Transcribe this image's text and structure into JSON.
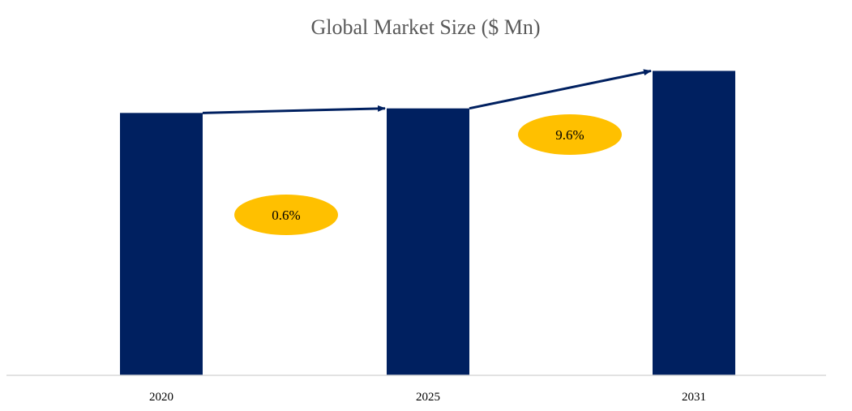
{
  "chart_data": {
    "type": "bar",
    "title": "Global Market Size ($ Mn)",
    "categories": [
      "2020",
      "2025",
      "2031"
    ],
    "values": [
      57.4,
      58.4,
      66.6
    ],
    "ylim": [
      0,
      72
    ],
    "xlabel": "",
    "ylabel": "",
    "grid": false,
    "legend": "none",
    "annotations": [
      {
        "label": "0.6%",
        "from": "2020",
        "to": "2025"
      },
      {
        "label": "9.6%",
        "from": "2025",
        "to": "2031"
      }
    ]
  },
  "colors": {
    "bar": "#002060",
    "arrow": "#002060",
    "badge": "#FFC000",
    "title": "#595959",
    "axis": "#D9D9D9",
    "tick": "#000000"
  }
}
